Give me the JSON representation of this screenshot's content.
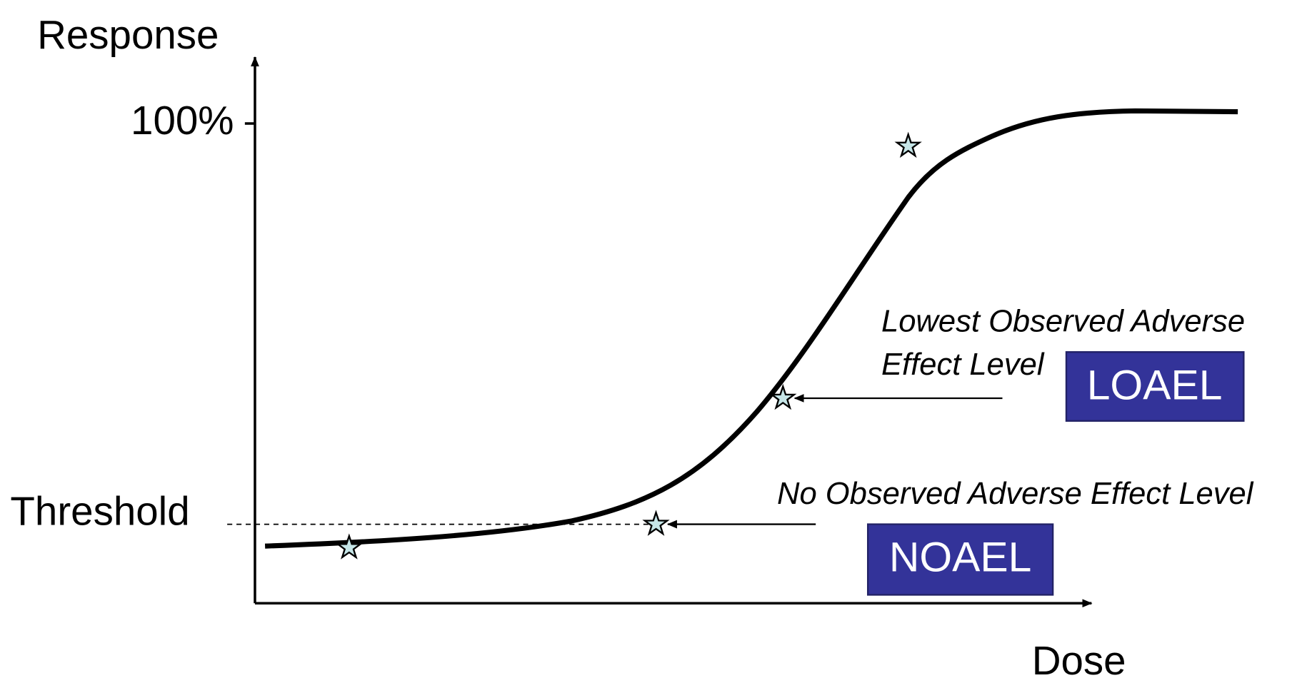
{
  "axes": {
    "y_label": "Response",
    "x_label": "Dose",
    "y_tick": "100%",
    "threshold": "Threshold"
  },
  "annotations": {
    "loael_description": [
      "Lowest Observed Adverse",
      "Effect Level"
    ],
    "loael": "LOAEL",
    "noael_description": "No Observed Adverse Effect Level",
    "noael": "NOAEL"
  }
}
